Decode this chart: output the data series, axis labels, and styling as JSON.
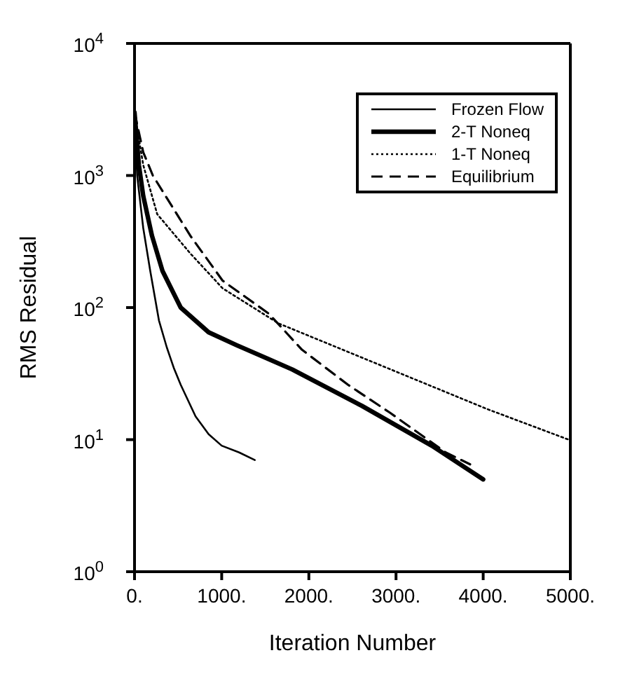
{
  "chart_data": {
    "type": "line",
    "xlabel": "Iteration  Number",
    "ylabel": "RMS Residual",
    "log": "y",
    "legend": "top right",
    "grid": false,
    "xlim": [
      0,
      5000
    ],
    "xticks": [
      {
        "value": 0,
        "label": "0."
      },
      {
        "value": 1000,
        "label": "1000."
      },
      {
        "value": 2000,
        "label": "2000."
      },
      {
        "value": 3000,
        "label": "3000."
      },
      {
        "value": 4000,
        "label": "4000."
      },
      {
        "value": 5000,
        "label": "5000."
      }
    ],
    "ylim": [
      1,
      10000
    ],
    "yticks": [
      {
        "value": 1,
        "label": "10$^{0}$"
      },
      {
        "value": 10,
        "label": "10$^{1}$"
      },
      {
        "value": 100,
        "label": "10$^{2}$"
      },
      {
        "value": 1000,
        "label": "10$^{3}$"
      },
      {
        "value": 10000,
        "label": "10$^{4}$"
      }
    ],
    "series": [
      {
        "name": "Frozen Flow",
        "color": "#000000",
        "line_style": "solid",
        "x": [
          0,
          30,
          100,
          180,
          280,
          370,
          450,
          530,
          700,
          850,
          1000,
          1200,
          1380
        ],
        "values": [
          3000,
          1000,
          400,
          190,
          80,
          50,
          35,
          26,
          15,
          11,
          9,
          8,
          7
        ]
      },
      {
        "name": "2-T Noneq",
        "color": "#000000",
        "line_style": "solid",
        "x": [
          0,
          50,
          100,
          200,
          320,
          530,
          850,
          1170,
          1810,
          2610,
          3410,
          4000
        ],
        "values": [
          3000,
          1200,
          700,
          350,
          190,
          100,
          65,
          52,
          34,
          18,
          9,
          5
        ]
      },
      {
        "name": "1-T Noneq",
        "color": "#000000",
        "line_style": "dotted",
        "x": [
          0,
          100,
          260,
          640,
          1010,
          1650,
          2290,
          3140,
          4050,
          4980
        ],
        "values": [
          3000,
          1200,
          510,
          257,
          140,
          76,
          51,
          30,
          17,
          10
        ]
      },
      {
        "name": "Equilibrium",
        "color": "#000000",
        "line_style": "dashed",
        "x": [
          0,
          100,
          210,
          640,
          1010,
          1540,
          1920,
          2450,
          2930,
          3570,
          3850
        ],
        "values": [
          3000,
          1500,
          1000,
          350,
          160,
          90,
          48,
          26,
          16,
          8,
          6.5
        ]
      }
    ]
  }
}
